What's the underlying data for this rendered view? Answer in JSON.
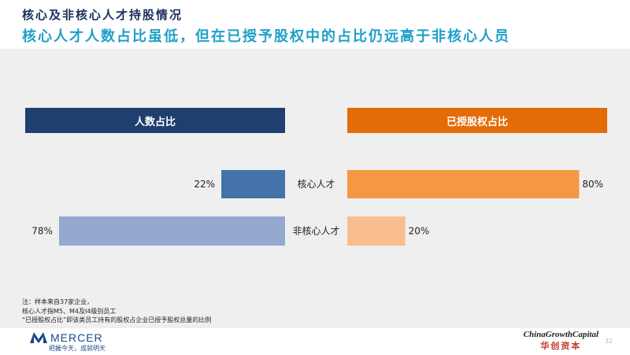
{
  "header": {
    "title": "核心及非核心人才持股情况",
    "subtitle": "核心人才人数占比虽低，但在已授予股权中的占比仍远高于非核心人员"
  },
  "columns": {
    "left": "人数占比",
    "right": "已授股权占比"
  },
  "colors": {
    "left_header": "#1f3f6e",
    "right_header": "#e36c09",
    "left_core": "#4472a8",
    "left_noncore": "#95a8d0",
    "right_core": "#f59844",
    "right_noncore": "#f8be8e"
  },
  "chart_data": {
    "type": "bar",
    "categories": [
      "核心人才",
      "非核心人才"
    ],
    "series": [
      {
        "name": "人数占比",
        "values": [
          22,
          78
        ],
        "labels": [
          "22%",
          "78%"
        ]
      },
      {
        "name": "已授股权占比",
        "values": [
          80,
          20
        ],
        "labels": [
          "80%",
          "20%"
        ]
      }
    ],
    "xlim": [
      0,
      100
    ],
    "orientation": "horizontal-butterfly"
  },
  "notes": {
    "line1": "注：样本来自37家企业，",
    "line2": "核心人才指M5、M4及I4级别员工",
    "line3": "“已授股权占比”即该类员工持有的股权占企业已授予股权总量的比例"
  },
  "footer": {
    "brand": "MERCER",
    "tagline": "把握今天，成就明天",
    "partner_en": "ChinaGrowthCapital",
    "partner_cn": "华创资本",
    "page": "32"
  }
}
